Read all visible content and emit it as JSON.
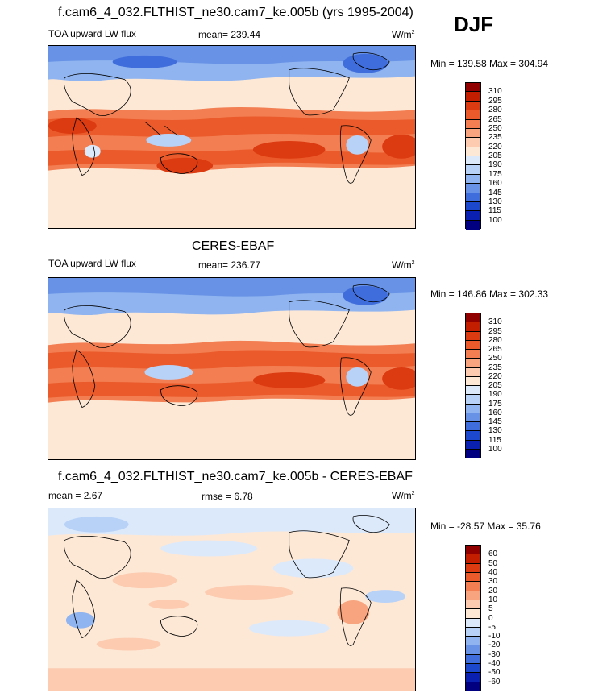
{
  "season": "DJF",
  "panels": [
    {
      "title": "f.cam6_4_032.FLTHIST_ne30.cam7_ke.005b (yrs 1995-2004)",
      "left_label": "TOA upward LW flux",
      "mid_label": "mean= 239.44",
      "units": "W/m",
      "units_sup": "2",
      "minmax": "Min = 139.58 Max = 304.94",
      "levels": [
        "310",
        "295",
        "280",
        "265",
        "250",
        "235",
        "220",
        "205",
        "190",
        "175",
        "160",
        "145",
        "130",
        "115",
        "100"
      ]
    },
    {
      "title": "CERES-EBAF",
      "left_label": "TOA upward LW flux",
      "mid_label": "mean= 236.77",
      "units": "W/m",
      "units_sup": "2",
      "minmax": "Min = 146.86 Max = 302.33",
      "levels": [
        "310",
        "295",
        "280",
        "265",
        "250",
        "235",
        "220",
        "205",
        "190",
        "175",
        "160",
        "145",
        "130",
        "115",
        "100"
      ]
    },
    {
      "title": "f.cam6_4_032.FLTHIST_ne30.cam7_ke.005b - CERES-EBAF",
      "left_label": "mean =   2.67",
      "mid_label": "rmse =   6.78",
      "units": "W/m",
      "units_sup": "2",
      "minmax": "Min = -28.57 Max =  35.76",
      "levels": [
        "60",
        "50",
        "40",
        "30",
        "20",
        "10",
        "5",
        "0",
        "-5",
        "-10",
        "-20",
        "-30",
        "-40",
        "-50",
        "-60"
      ]
    }
  ],
  "colors": {
    "seq": [
      "#900000",
      "#c41e00",
      "#dc3a10",
      "#ea5a2a",
      "#f27e52",
      "#f8a47e",
      "#fccbb0",
      "#fde8d6",
      "#dce9fb",
      "#b8d2f7",
      "#8fb4ef",
      "#6792e6",
      "#3f6ddb",
      "#1b48cc",
      "#0a20b0",
      "#000080"
    ],
    "div": [
      "#900000",
      "#c41e00",
      "#dc3a10",
      "#ea5a2a",
      "#f27e52",
      "#f8a47e",
      "#fccbb0",
      "#fde8d6",
      "#dce9fb",
      "#b8d2f7",
      "#8fb4ef",
      "#6792e6",
      "#3f6ddb",
      "#1b48cc",
      "#0a20b0",
      "#000080"
    ]
  }
}
